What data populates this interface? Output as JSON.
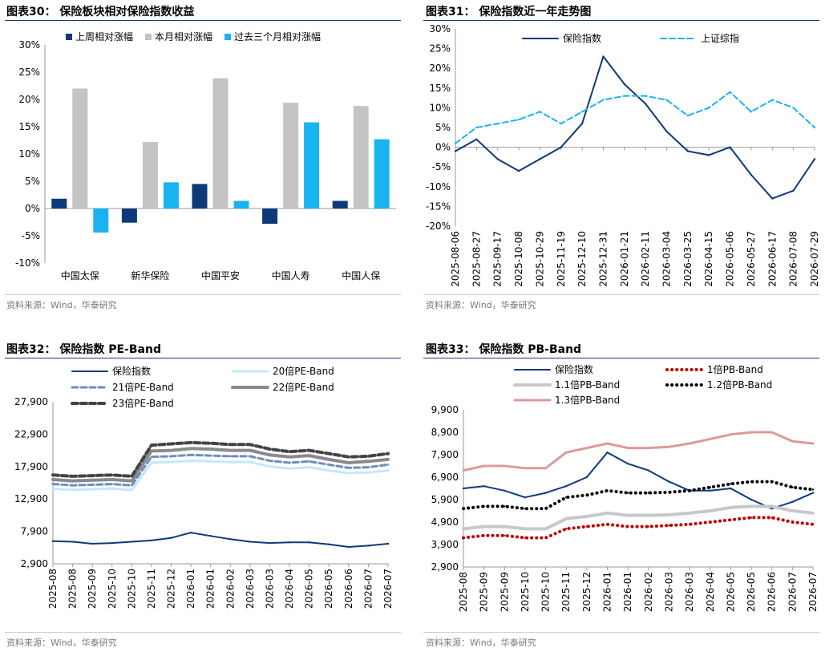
{
  "source_text": "资料来源：Wind，华泰研究",
  "panels": [
    {
      "title": "图表30：  保险板块相对保险指数收益"
    },
    {
      "title": "图表31：  保险指数近一年走势图"
    },
    {
      "title": "图表32：  保险指数 PE-Band"
    },
    {
      "title": "图表33：  保险指数 PB-Band"
    }
  ],
  "chart_data": [
    {
      "type": "bar",
      "categories": [
        "中国太保",
        "新华保险",
        "中国平安",
        "中国人寿",
        "中国人保"
      ],
      "series": [
        {
          "name": "上周相对涨幅",
          "color": "#0d3a7a",
          "values": [
            1.8,
            -2.6,
            4.5,
            -2.8,
            1.4
          ]
        },
        {
          "name": "本月相对涨幅",
          "color": "#c4c4c4",
          "values": [
            22.0,
            12.2,
            23.9,
            19.4,
            18.8
          ]
        },
        {
          "name": "过去三个月相对涨幅",
          "color": "#19b4ef",
          "values": [
            -4.4,
            4.8,
            1.4,
            15.8,
            12.7
          ]
        }
      ],
      "ylim": [
        -10,
        30
      ],
      "yticks": [
        "-10%",
        "-5%",
        "0%",
        "5%",
        "10%",
        "15%",
        "20%",
        "25%",
        "30%"
      ],
      "legend": "top"
    },
    {
      "type": "line",
      "x": [
        "2025-08-06",
        "2025-08-27",
        "2025-09-17",
        "2025-10-08",
        "2025-10-29",
        "2025-11-19",
        "2025-12-10",
        "2025-12-31",
        "2026-01-21",
        "2026-02-11",
        "2026-03-04",
        "2026-03-25",
        "2026-04-15",
        "2026-05-06",
        "2026-05-27",
        "2026-06-17",
        "2026-07-08",
        "2026-07-29"
      ],
      "series": [
        {
          "name": "保险指数",
          "color": "#0d3a7a",
          "dash": "solid",
          "values": [
            -1,
            2,
            -3,
            -6,
            -3,
            0,
            6,
            23,
            16,
            11,
            4,
            -1,
            -2,
            0,
            -7,
            -13,
            -11,
            -3
          ]
        },
        {
          "name": "上证综指",
          "color": "#19b4ef",
          "dash": "dash",
          "values": [
            1,
            5,
            6,
            7,
            9,
            6,
            9,
            12,
            13,
            13,
            12,
            8,
            10,
            14,
            9,
            12,
            10,
            5
          ]
        }
      ],
      "ylim": [
        -20,
        30
      ],
      "yticks": [
        "-20%",
        "-15%",
        "-10%",
        "-5%",
        "0%",
        "5%",
        "10%",
        "15%",
        "20%",
        "25%",
        "30%"
      ],
      "legend": "top"
    },
    {
      "type": "line",
      "x": [
        "2025-08",
        "2025-08",
        "2025-09",
        "2025-10",
        "2025-10",
        "2025-11",
        "2025-12",
        "2026-01",
        "2026-01",
        "2026-02",
        "2026-03",
        "2026-03",
        "2026-04",
        "2026-05",
        "2026-05",
        "2026-06",
        "2026-07",
        "2026-07"
      ],
      "series": [
        {
          "name": "保险指数",
          "color": "#0d3a7a",
          "dash": "solid",
          "values": [
            6400,
            6300,
            6000,
            6100,
            6300,
            6500,
            6900,
            7700,
            7200,
            6700,
            6300,
            6100,
            6200,
            6200,
            5900,
            5500,
            5700,
            6000
          ]
        },
        {
          "name": "20倍PE-Band",
          "color": "#c5e7fb",
          "dash": "solid",
          "values": [
            14500,
            14300,
            14400,
            14500,
            14300,
            18500,
            18600,
            18800,
            18700,
            18600,
            18600,
            17900,
            17600,
            17800,
            17300,
            16900,
            17000,
            17300
          ]
        },
        {
          "name": "21倍PE-Band",
          "color": "#6d8fbd",
          "dash": "dash",
          "values": [
            15200,
            15000,
            15100,
            15200,
            15000,
            19400,
            19500,
            19700,
            19600,
            19500,
            19500,
            18800,
            18500,
            18700,
            18200,
            17700,
            17800,
            18200
          ]
        },
        {
          "name": "22倍PE-Band",
          "color": "#8a8a8a",
          "dash": "solid",
          "values": [
            15900,
            15700,
            15800,
            15900,
            15700,
            20300,
            20400,
            20700,
            20600,
            20400,
            20400,
            19700,
            19400,
            19600,
            19000,
            18500,
            18700,
            19000
          ]
        },
        {
          "name": "23倍PE-Band",
          "color": "#444444",
          "dash": "dash",
          "values": [
            16600,
            16400,
            16500,
            16600,
            16400,
            21200,
            21400,
            21600,
            21500,
            21300,
            21300,
            20600,
            20200,
            20400,
            19900,
            19400,
            19500,
            19900
          ]
        }
      ],
      "ylim": [
        2900,
        27900
      ],
      "yticks": [
        "2,900",
        "7,900",
        "12,900",
        "17,900",
        "22,900",
        "27,900"
      ],
      "legend": "top"
    },
    {
      "type": "line",
      "x": [
        "2025-08",
        "2025-09",
        "2025-09",
        "2025-10",
        "2025-10",
        "2025-11",
        "2025-12",
        "2026-01",
        "2026-01",
        "2026-02",
        "2026-03",
        "2026-03",
        "2026-04",
        "2026-05",
        "2026-05",
        "2026-06",
        "2026-07",
        "2026-07"
      ],
      "series": [
        {
          "name": "保险指数",
          "color": "#0d3a7a",
          "dash": "solid",
          "values": [
            6400,
            6500,
            6300,
            6000,
            6200,
            6500,
            6900,
            8000,
            7500,
            7200,
            6700,
            6300,
            6300,
            6400,
            5900,
            5500,
            5800,
            6200
          ]
        },
        {
          "name": "1倍PB-Band",
          "color": "#c00000",
          "dash": "dot",
          "values": [
            4200,
            4300,
            4300,
            4200,
            4200,
            4600,
            4700,
            4800,
            4700,
            4700,
            4750,
            4800,
            4900,
            5000,
            5100,
            5100,
            4900,
            4800
          ]
        },
        {
          "name": "1.1倍PB-Band",
          "color": "#c8c8c8",
          "dash": "solid",
          "values": [
            4600,
            4700,
            4700,
            4600,
            4600,
            5050,
            5150,
            5300,
            5200,
            5200,
            5220,
            5300,
            5400,
            5550,
            5600,
            5600,
            5400,
            5300
          ]
        },
        {
          "name": "1.2倍PB-Band",
          "color": "#000000",
          "dash": "dot",
          "values": [
            5500,
            5600,
            5600,
            5500,
            5500,
            6000,
            6100,
            6300,
            6200,
            6200,
            6230,
            6300,
            6450,
            6600,
            6700,
            6700,
            6450,
            6350
          ]
        },
        {
          "name": "1.3倍PB-Band",
          "color": "#dd9a9a",
          "dash": "solid",
          "values": [
            7200,
            7400,
            7400,
            7300,
            7300,
            8000,
            8200,
            8400,
            8200,
            8200,
            8250,
            8400,
            8600,
            8800,
            8900,
            8900,
            8500,
            8400
          ]
        }
      ],
      "ylim": [
        2900,
        9900
      ],
      "yticks": [
        "2,900",
        "3,900",
        "4,900",
        "5,900",
        "6,900",
        "7,900",
        "8,900",
        "9,900"
      ],
      "legend": "top"
    }
  ]
}
